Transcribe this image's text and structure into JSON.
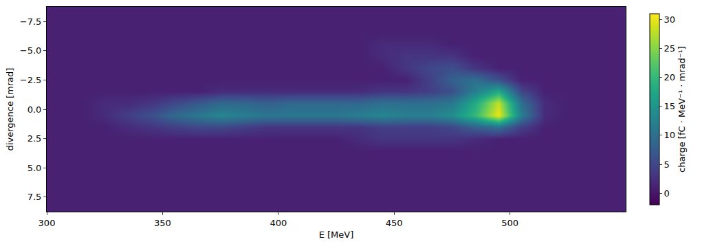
{
  "chart_data": {
    "type": "heatmap",
    "x_label": "E [MeV]",
    "y_label": "divergence [mrad]",
    "colorbar_label": "charge [fC · MeV⁻¹ · mrad⁻¹]",
    "x": [
      305,
      315,
      325,
      335,
      345,
      355,
      365,
      375,
      385,
      395,
      405,
      415,
      425,
      435,
      445,
      455,
      465,
      475,
      485,
      495,
      505,
      515,
      525,
      535,
      545
    ],
    "y": [
      -8.5,
      -7.5,
      -6.5,
      -5.5,
      -4.5,
      -3.5,
      -2.5,
      -1.5,
      -0.5,
      0.5,
      1.5,
      2.5,
      3.5,
      4.5,
      5.5,
      6.5,
      7.5,
      8.5
    ],
    "z": [
      [
        1,
        1,
        1,
        1,
        1,
        1,
        1,
        1,
        1,
        1,
        1,
        1,
        1,
        1,
        1,
        1,
        1,
        1,
        1,
        1,
        1,
        1,
        1,
        1,
        1
      ],
      [
        1,
        1,
        1,
        1,
        1,
        1,
        1,
        1,
        1,
        1,
        1,
        1,
        1,
        1,
        1,
        1,
        1,
        1,
        1,
        1,
        1,
        1,
        1,
        1,
        1
      ],
      [
        1,
        1,
        1,
        1,
        1,
        1,
        1,
        1,
        1,
        1,
        1,
        1,
        1,
        1,
        1,
        1,
        1,
        1,
        1,
        1,
        1,
        1,
        1,
        1,
        1
      ],
      [
        1,
        1,
        1,
        1,
        1,
        1,
        1,
        1,
        1,
        1,
        1,
        1,
        1,
        1,
        2,
        2,
        2,
        1,
        1,
        1,
        1,
        1,
        1,
        1,
        1
      ],
      [
        1,
        1,
        1,
        1,
        1,
        1,
        1,
        1,
        1,
        1,
        1,
        1,
        1,
        1,
        2,
        3,
        3,
        3,
        1,
        1,
        1,
        1,
        1,
        1,
        1
      ],
      [
        1,
        1,
        1,
        1,
        1,
        1,
        1,
        1,
        1,
        1,
        1,
        1,
        1,
        1,
        1,
        3,
        5,
        6,
        3,
        1,
        1,
        1,
        1,
        1,
        1
      ],
      [
        1,
        1,
        1,
        1,
        1,
        1,
        1,
        1,
        1,
        1,
        1,
        1,
        1,
        1,
        1,
        1,
        4,
        8,
        10,
        6,
        1,
        1,
        1,
        1,
        1
      ],
      [
        1,
        1,
        1,
        1,
        1,
        1,
        1,
        2,
        2,
        2,
        2,
        2,
        2,
        2,
        3,
        3,
        4,
        6,
        12,
        18,
        5,
        1,
        1,
        1,
        1
      ],
      [
        1,
        1,
        2,
        2,
        3,
        5,
        7,
        9,
        9,
        8,
        9,
        9,
        9,
        9,
        10,
        10,
        10,
        11,
        18,
        28,
        10,
        2,
        1,
        1,
        1
      ],
      [
        1,
        1,
        2,
        4,
        6,
        9,
        11,
        13,
        12,
        11,
        11,
        11,
        11,
        12,
        13,
        12,
        12,
        14,
        20,
        30,
        12,
        2,
        1,
        1,
        1
      ],
      [
        1,
        1,
        1,
        2,
        3,
        4,
        5,
        5,
        4,
        3,
        3,
        3,
        3,
        3,
        4,
        4,
        4,
        5,
        8,
        10,
        4,
        1,
        1,
        1,
        1
      ],
      [
        1,
        1,
        1,
        1,
        1,
        1,
        1,
        1,
        1,
        1,
        1,
        1,
        1,
        2,
        3,
        3,
        3,
        3,
        2,
        1,
        1,
        1,
        1,
        1,
        1
      ],
      [
        1,
        1,
        1,
        1,
        1,
        1,
        1,
        1,
        1,
        1,
        1,
        1,
        1,
        1,
        1,
        1,
        1,
        1,
        1,
        1,
        1,
        1,
        1,
        1,
        1
      ],
      [
        1,
        1,
        1,
        1,
        1,
        1,
        1,
        1,
        1,
        1,
        1,
        1,
        1,
        1,
        1,
        1,
        1,
        1,
        1,
        1,
        1,
        1,
        1,
        1,
        1
      ],
      [
        1,
        1,
        1,
        1,
        1,
        1,
        1,
        1,
        1,
        1,
        1,
        1,
        1,
        1,
        1,
        1,
        1,
        1,
        1,
        1,
        1,
        1,
        1,
        1,
        1
      ],
      [
        1,
        1,
        1,
        1,
        1,
        1,
        1,
        1,
        1,
        1,
        1,
        1,
        1,
        1,
        1,
        1,
        1,
        1,
        1,
        1,
        1,
        1,
        1,
        1,
        1
      ],
      [
        1,
        1,
        1,
        1,
        1,
        1,
        1,
        1,
        1,
        1,
        1,
        1,
        1,
        1,
        1,
        1,
        1,
        1,
        1,
        1,
        1,
        1,
        1,
        1,
        1
      ],
      [
        1,
        1,
        1,
        1,
        1,
        1,
        1,
        1,
        1,
        1,
        1,
        1,
        1,
        1,
        1,
        1,
        1,
        1,
        1,
        1,
        1,
        1,
        1,
        1,
        1
      ]
    ],
    "xlim": [
      300,
      550
    ],
    "xticks": [
      300,
      350,
      400,
      450,
      500
    ],
    "ylim": [
      8.75,
      -8.75
    ],
    "yticks": [
      {
        "value": -7.5,
        "label": "−7.5"
      },
      {
        "value": -5.0,
        "label": "−5.0"
      },
      {
        "value": -2.5,
        "label": "−2.5"
      },
      {
        "value": 0,
        "label": "0.0"
      },
      2.5,
      {
        "value": 5.0,
        "label": "5.0"
      },
      7.5
    ],
    "colorbar_range": [
      -2,
      31
    ],
    "colorbar_ticks": [
      0,
      5,
      10,
      15,
      20,
      25,
      30
    ],
    "grid": false
  }
}
